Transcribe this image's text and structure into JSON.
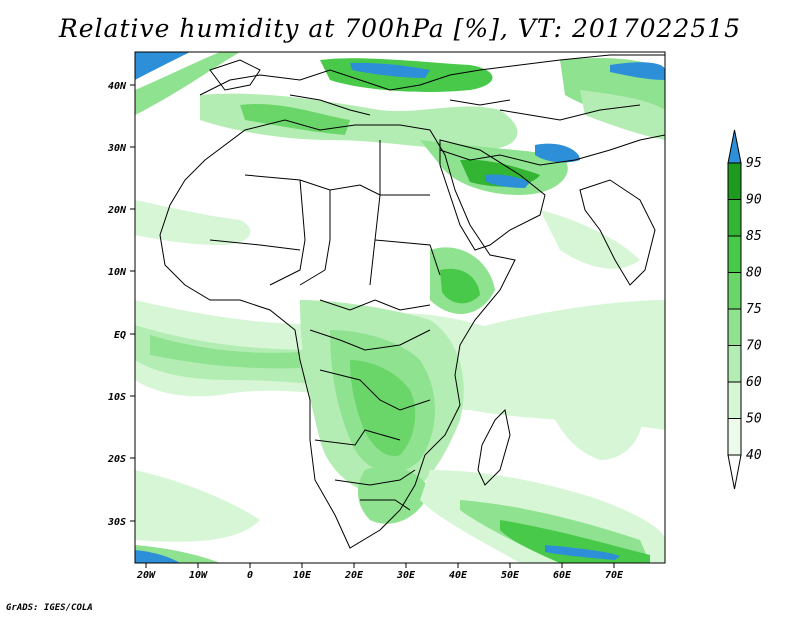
{
  "title": "Relative humidity at 700hPa [%], VT: 2017022515",
  "x_ticks": [
    "20W",
    "10W",
    "0",
    "10E",
    "20E",
    "30E",
    "40E",
    "50E",
    "60E",
    "70E"
  ],
  "y_ticks": [
    "40N",
    "30N",
    "20N",
    "10N",
    "EQ",
    "10S",
    "20S",
    "30S"
  ],
  "colorbar": {
    "levels": [
      "95",
      "90",
      "85",
      "80",
      "75",
      "70",
      "60",
      "50",
      "40"
    ],
    "colors": [
      "#2d8fd8",
      "#1e9b1e",
      "#33b433",
      "#49c949",
      "#6ad66a",
      "#8fe28f",
      "#b4edb4",
      "#d6f6d6",
      "#edfbed"
    ],
    "above_color": "#2d8fd8",
    "below_color": "#ffffff"
  },
  "credit": "GrADS: IGES/COLA",
  "colors": {
    "land_border": "#000000",
    "moist_low": "#d6f6d6",
    "moist_mid": "#8fe28f",
    "moist_high": "#33b433",
    "saturated": "#2d8fd8"
  }
}
